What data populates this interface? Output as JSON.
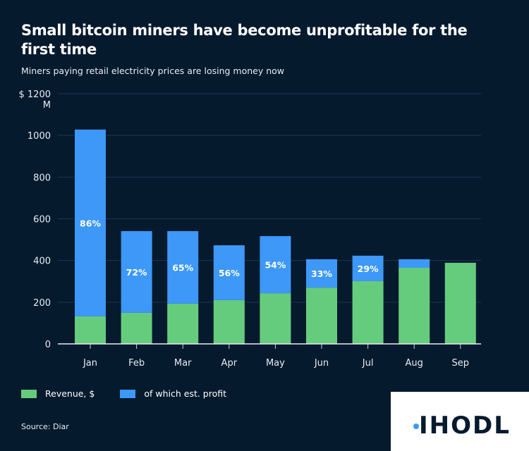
{
  "header": {
    "title": "Small bitcoin miners have become unprofitable for the first time",
    "subtitle": "Miners paying retail electricity prices are losing money now"
  },
  "chart_data": {
    "type": "bar",
    "stacked": true,
    "title": "Small bitcoin miners have become unprofitable for the first time",
    "ylabel": "$ M",
    "ylim": [
      0,
      1200
    ],
    "yticks": [
      0,
      200,
      400,
      600,
      800,
      1000,
      1200
    ],
    "ytick_top_label": "$ 1200",
    "ytick_unit": "M",
    "grid": true,
    "legend_position": "bottom-left",
    "categories": [
      "Jan",
      "Feb",
      "Mar",
      "Apr",
      "May",
      "Jun",
      "Jul",
      "Aug",
      "Sep"
    ],
    "series": [
      {
        "name": "Revenue, $",
        "color": "#66cc7d",
        "values": [
          132,
          149,
          193,
          210,
          243,
          270,
          301,
          365,
          389
        ]
      },
      {
        "name": "of which est. profit",
        "color": "#3d98f7",
        "values": [
          896,
          392,
          348,
          263,
          274,
          136,
          122,
          41,
          0
        ]
      }
    ],
    "totals": [
      1028,
      541,
      541,
      473,
      517,
      406,
      423,
      406,
      389
    ],
    "labels": [
      "86%",
      "72%",
      "65%",
      "56%",
      "54%",
      "33%",
      "29%",
      "",
      ""
    ]
  },
  "legend": {
    "revenue": "Revenue, $",
    "profit": "of which est. profit"
  },
  "source": "Source: Diar",
  "logo": {
    "text": "IHODL"
  }
}
